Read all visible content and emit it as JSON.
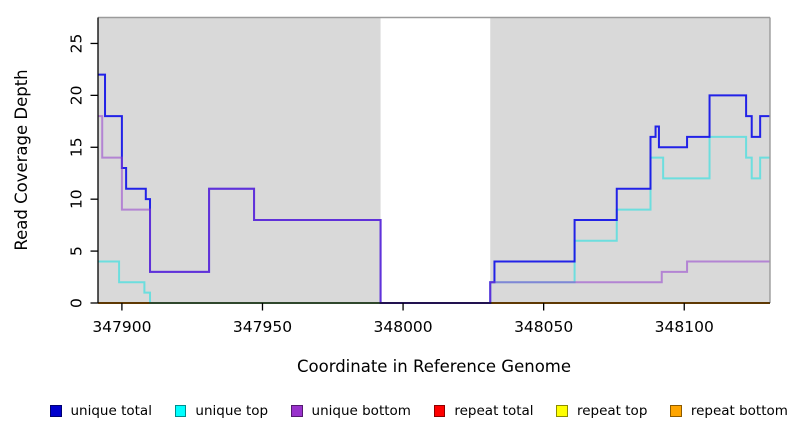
{
  "figure": {
    "x_axis_label": "Coordinate in Reference Genome",
    "y_axis_label": "Read Coverage Depth"
  },
  "chart_data": {
    "type": "line",
    "line_style": "step-after",
    "title": "",
    "xlabel": "Coordinate in Reference Genome",
    "ylabel": "Read Coverage Depth",
    "x_domain": [
      347891.5,
      348130.5
    ],
    "y_domain": [
      0,
      27.5
    ],
    "x_ticks": [
      347900,
      347950,
      348000,
      348050,
      348100
    ],
    "y_ticks": [
      0,
      5,
      10,
      15,
      20,
      25
    ],
    "grid": false,
    "plot_background": "#ffffff",
    "band_color": "#d9d9d9",
    "shaded_bands": [
      {
        "x0": 347891.5,
        "x1": 347992,
        "color": "#d9d9d9"
      },
      {
        "x0": 348031,
        "x1": 348130.5,
        "color": "#d9d9d9"
      }
    ],
    "uncovered_gap": {
      "x0": 347992,
      "x1": 348031
    },
    "legend_position": "bottom",
    "series": [
      {
        "id": "repeat-total",
        "name": "repeat total",
        "legend_color": "#FF0000",
        "line_color": "rgba(220,0,0,0.7)",
        "points": [
          [
            347891.5,
            0
          ]
        ]
      },
      {
        "id": "repeat-top",
        "name": "repeat top",
        "legend_color": "#FFFF00",
        "line_color": "rgba(235,235,0,0.7)",
        "points": [
          [
            347891.5,
            0
          ]
        ]
      },
      {
        "id": "repeat-bottom",
        "name": "repeat bottom",
        "legend_color": "#FFA500",
        "line_color": "rgba(255,150,8,0.92)",
        "points": [
          [
            347891.5,
            0
          ]
        ]
      },
      {
        "id": "unique-top",
        "name": "unique top",
        "legend_color": "#00FFFF",
        "line_color": "rgba(0,228,228,0.5)",
        "points": [
          [
            347891.5,
            4
          ],
          [
            347899,
            2
          ],
          [
            347908,
            1
          ],
          [
            347910,
            0
          ],
          [
            348031,
            2
          ],
          [
            348061,
            6
          ],
          [
            348076,
            9
          ],
          [
            348088,
            14
          ],
          [
            348092.5,
            12
          ],
          [
            348109,
            16
          ],
          [
            348122,
            14
          ],
          [
            348124,
            12
          ],
          [
            348127,
            14
          ]
        ]
      },
      {
        "id": "unique-total",
        "name": "unique total",
        "legend_color": "#0000CD",
        "line_color": "rgba(22,22,232,0.94)",
        "points": [
          [
            347891.5,
            22
          ],
          [
            347894,
            18
          ],
          [
            347900,
            13
          ],
          [
            347901.5,
            11
          ],
          [
            347908.5,
            10
          ],
          [
            347910,
            3
          ],
          [
            347931,
            11
          ],
          [
            347947,
            8
          ],
          [
            347992,
            0
          ],
          [
            348031,
            2
          ],
          [
            348032.5,
            4
          ],
          [
            348061,
            8
          ],
          [
            348076,
            11
          ],
          [
            348088,
            16
          ],
          [
            348089.8,
            17
          ],
          [
            348091,
            15
          ],
          [
            348101,
            16
          ],
          [
            348109,
            20
          ],
          [
            348122,
            18
          ],
          [
            348124,
            16
          ],
          [
            348127,
            18
          ]
        ]
      },
      {
        "id": "unique-bottom",
        "name": "unique bottom",
        "legend_color": "#9932CC",
        "line_color": "rgba(148,62,206,0.55)",
        "points": [
          [
            347891.5,
            18
          ],
          [
            347893,
            14
          ],
          [
            347900,
            9
          ],
          [
            347910,
            3
          ],
          [
            347931,
            11
          ],
          [
            347947,
            8
          ],
          [
            347992,
            0
          ],
          [
            348031,
            2
          ],
          [
            348092,
            3
          ],
          [
            348101,
            4
          ]
        ]
      }
    ]
  },
  "legend": {
    "items": [
      {
        "label": "unique total",
        "color": "#0000CD"
      },
      {
        "label": "unique top",
        "color": "#00FFFF"
      },
      {
        "label": "unique bottom",
        "color": "#9932CC"
      },
      {
        "label": "repeat total",
        "color": "#FF0000"
      },
      {
        "label": "repeat top",
        "color": "#FFFF00"
      },
      {
        "label": "repeat bottom",
        "color": "#FFA500"
      }
    ]
  }
}
